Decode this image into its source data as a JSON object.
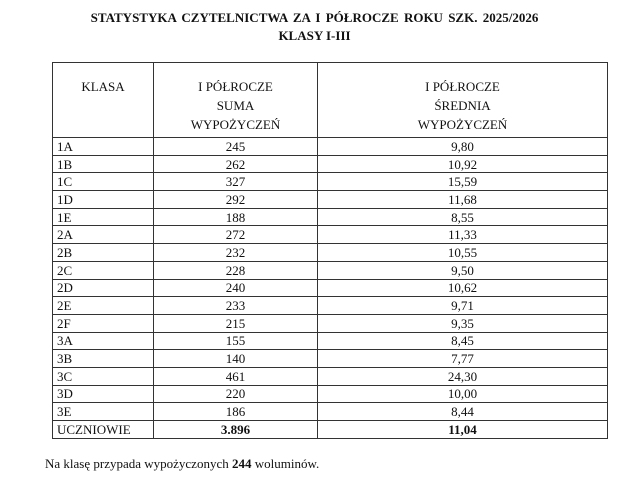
{
  "title_line1": "STATYSTYKA  CZYTELNICTWA  ZA  I  PÓŁROCZE ROKU SZK.  2025/2026",
  "title_line2": "KLASY  I-III",
  "headers": {
    "col1": "KLASA",
    "col2": [
      "I  PÓŁROCZE",
      "SUMA",
      "WYPOŻYCZEŃ"
    ],
    "col3": [
      "I PÓŁROCZE",
      "ŚREDNIA",
      "WYPOŻYCZEŃ"
    ]
  },
  "rows": [
    {
      "klasa": "1A",
      "suma": "245",
      "srednia": "9,80"
    },
    {
      "klasa": "1B",
      "suma": "262",
      "srednia": "10,92"
    },
    {
      "klasa": "1C",
      "suma": "327",
      "srednia": "15,59"
    },
    {
      "klasa": "1D",
      "suma": "292",
      "srednia": "11,68"
    },
    {
      "klasa": "1E",
      "suma": "188",
      "srednia": "8,55"
    },
    {
      "klasa": "2A",
      "suma": "272",
      "srednia": "11,33"
    },
    {
      "klasa": "2B",
      "suma": "232",
      "srednia": "10,55"
    },
    {
      "klasa": "2C",
      "suma": "228",
      "srednia": "9,50"
    },
    {
      "klasa": "2D",
      "suma": "240",
      "srednia": "10,62"
    },
    {
      "klasa": "2E",
      "suma": "233",
      "srednia": "9,71"
    },
    {
      "klasa": "2F",
      "suma": "215",
      "srednia": "9,35"
    },
    {
      "klasa": "3A",
      "suma": "155",
      "srednia": "8,45"
    },
    {
      "klasa": "3B",
      "suma": "140",
      "srednia": "7,77"
    },
    {
      "klasa": "3C",
      "suma": "461",
      "srednia": "24,30"
    },
    {
      "klasa": "3D",
      "suma": "220",
      "srednia": "10,00"
    },
    {
      "klasa": "3E",
      "suma": "186",
      "srednia": "8,44"
    }
  ],
  "total": {
    "klasa": "UCZNIOWIE",
    "suma": "3.896",
    "srednia": "11,04"
  },
  "footer": {
    "before": "Na klasę przypada wypożyczonych ",
    "value": "244",
    "after": " woluminów."
  }
}
